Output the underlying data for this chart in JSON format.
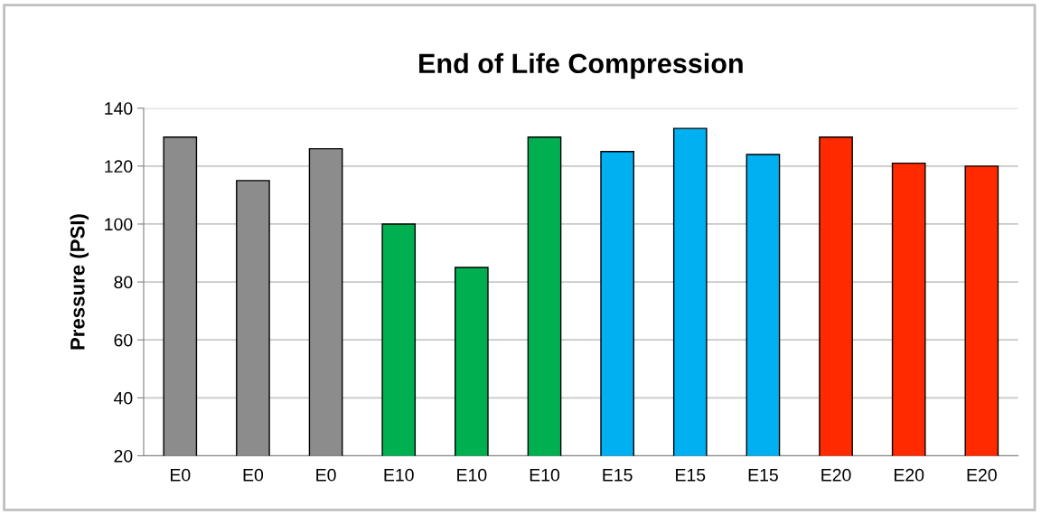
{
  "chart_data": {
    "type": "bar",
    "title": "End of Life Compression",
    "ylabel": "Pressure (PSI)",
    "categories": [
      "E0",
      "E0",
      "E0",
      "E10",
      "E10",
      "E10",
      "E15",
      "E15",
      "E15",
      "E20",
      "E20",
      "E20"
    ],
    "values": [
      130,
      115,
      126,
      100,
      85,
      130,
      125,
      133,
      124,
      130,
      121,
      120
    ],
    "colors": [
      "#8c8c8c",
      "#8c8c8c",
      "#8c8c8c",
      "#00b050",
      "#00b050",
      "#00b050",
      "#00b0f0",
      "#00b0f0",
      "#00b0f0",
      "#ff2a00",
      "#ff2a00",
      "#ff2a00"
    ],
    "ylim": [
      20,
      140
    ],
    "yticks": [
      20,
      40,
      60,
      80,
      100,
      120,
      140
    ],
    "grid": "y",
    "legend": false
  }
}
